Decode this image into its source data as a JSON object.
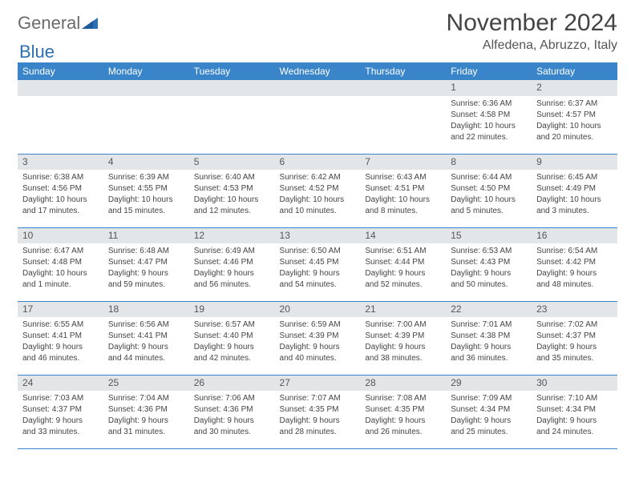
{
  "brand": {
    "part1": "General",
    "part2": "Blue"
  },
  "title": "November 2024",
  "location": "Alfedena, Abruzzo, Italy",
  "colors": {
    "header_bg": "#3a85c9",
    "header_text": "#ffffff",
    "daynum_bg": "#e3e6e9",
    "cell_border": "#3a85c9",
    "body_text": "#444444",
    "title_text": "#444444",
    "brand_gray": "#6b6b6b",
    "brand_blue": "#2c6fb3",
    "page_bg": "#ffffff"
  },
  "typography": {
    "title_fontsize": 30,
    "location_fontsize": 16,
    "dayheader_fontsize": 12,
    "daynum_fontsize": 12,
    "cell_fontsize": 10
  },
  "day_headers": [
    "Sunday",
    "Monday",
    "Tuesday",
    "Wednesday",
    "Thursday",
    "Friday",
    "Saturday"
  ],
  "weeks": [
    [
      null,
      null,
      null,
      null,
      null,
      {
        "n": "1",
        "sunrise": "Sunrise: 6:36 AM",
        "sunset": "Sunset: 4:58 PM",
        "dl1": "Daylight: 10 hours",
        "dl2": "and 22 minutes."
      },
      {
        "n": "2",
        "sunrise": "Sunrise: 6:37 AM",
        "sunset": "Sunset: 4:57 PM",
        "dl1": "Daylight: 10 hours",
        "dl2": "and 20 minutes."
      }
    ],
    [
      {
        "n": "3",
        "sunrise": "Sunrise: 6:38 AM",
        "sunset": "Sunset: 4:56 PM",
        "dl1": "Daylight: 10 hours",
        "dl2": "and 17 minutes."
      },
      {
        "n": "4",
        "sunrise": "Sunrise: 6:39 AM",
        "sunset": "Sunset: 4:55 PM",
        "dl1": "Daylight: 10 hours",
        "dl2": "and 15 minutes."
      },
      {
        "n": "5",
        "sunrise": "Sunrise: 6:40 AM",
        "sunset": "Sunset: 4:53 PM",
        "dl1": "Daylight: 10 hours",
        "dl2": "and 12 minutes."
      },
      {
        "n": "6",
        "sunrise": "Sunrise: 6:42 AM",
        "sunset": "Sunset: 4:52 PM",
        "dl1": "Daylight: 10 hours",
        "dl2": "and 10 minutes."
      },
      {
        "n": "7",
        "sunrise": "Sunrise: 6:43 AM",
        "sunset": "Sunset: 4:51 PM",
        "dl1": "Daylight: 10 hours",
        "dl2": "and 8 minutes."
      },
      {
        "n": "8",
        "sunrise": "Sunrise: 6:44 AM",
        "sunset": "Sunset: 4:50 PM",
        "dl1": "Daylight: 10 hours",
        "dl2": "and 5 minutes."
      },
      {
        "n": "9",
        "sunrise": "Sunrise: 6:45 AM",
        "sunset": "Sunset: 4:49 PM",
        "dl1": "Daylight: 10 hours",
        "dl2": "and 3 minutes."
      }
    ],
    [
      {
        "n": "10",
        "sunrise": "Sunrise: 6:47 AM",
        "sunset": "Sunset: 4:48 PM",
        "dl1": "Daylight: 10 hours",
        "dl2": "and 1 minute."
      },
      {
        "n": "11",
        "sunrise": "Sunrise: 6:48 AM",
        "sunset": "Sunset: 4:47 PM",
        "dl1": "Daylight: 9 hours",
        "dl2": "and 59 minutes."
      },
      {
        "n": "12",
        "sunrise": "Sunrise: 6:49 AM",
        "sunset": "Sunset: 4:46 PM",
        "dl1": "Daylight: 9 hours",
        "dl2": "and 56 minutes."
      },
      {
        "n": "13",
        "sunrise": "Sunrise: 6:50 AM",
        "sunset": "Sunset: 4:45 PM",
        "dl1": "Daylight: 9 hours",
        "dl2": "and 54 minutes."
      },
      {
        "n": "14",
        "sunrise": "Sunrise: 6:51 AM",
        "sunset": "Sunset: 4:44 PM",
        "dl1": "Daylight: 9 hours",
        "dl2": "and 52 minutes."
      },
      {
        "n": "15",
        "sunrise": "Sunrise: 6:53 AM",
        "sunset": "Sunset: 4:43 PM",
        "dl1": "Daylight: 9 hours",
        "dl2": "and 50 minutes."
      },
      {
        "n": "16",
        "sunrise": "Sunrise: 6:54 AM",
        "sunset": "Sunset: 4:42 PM",
        "dl1": "Daylight: 9 hours",
        "dl2": "and 48 minutes."
      }
    ],
    [
      {
        "n": "17",
        "sunrise": "Sunrise: 6:55 AM",
        "sunset": "Sunset: 4:41 PM",
        "dl1": "Daylight: 9 hours",
        "dl2": "and 46 minutes."
      },
      {
        "n": "18",
        "sunrise": "Sunrise: 6:56 AM",
        "sunset": "Sunset: 4:41 PM",
        "dl1": "Daylight: 9 hours",
        "dl2": "and 44 minutes."
      },
      {
        "n": "19",
        "sunrise": "Sunrise: 6:57 AM",
        "sunset": "Sunset: 4:40 PM",
        "dl1": "Daylight: 9 hours",
        "dl2": "and 42 minutes."
      },
      {
        "n": "20",
        "sunrise": "Sunrise: 6:59 AM",
        "sunset": "Sunset: 4:39 PM",
        "dl1": "Daylight: 9 hours",
        "dl2": "and 40 minutes."
      },
      {
        "n": "21",
        "sunrise": "Sunrise: 7:00 AM",
        "sunset": "Sunset: 4:39 PM",
        "dl1": "Daylight: 9 hours",
        "dl2": "and 38 minutes."
      },
      {
        "n": "22",
        "sunrise": "Sunrise: 7:01 AM",
        "sunset": "Sunset: 4:38 PM",
        "dl1": "Daylight: 9 hours",
        "dl2": "and 36 minutes."
      },
      {
        "n": "23",
        "sunrise": "Sunrise: 7:02 AM",
        "sunset": "Sunset: 4:37 PM",
        "dl1": "Daylight: 9 hours",
        "dl2": "and 35 minutes."
      }
    ],
    [
      {
        "n": "24",
        "sunrise": "Sunrise: 7:03 AM",
        "sunset": "Sunset: 4:37 PM",
        "dl1": "Daylight: 9 hours",
        "dl2": "and 33 minutes."
      },
      {
        "n": "25",
        "sunrise": "Sunrise: 7:04 AM",
        "sunset": "Sunset: 4:36 PM",
        "dl1": "Daylight: 9 hours",
        "dl2": "and 31 minutes."
      },
      {
        "n": "26",
        "sunrise": "Sunrise: 7:06 AM",
        "sunset": "Sunset: 4:36 PM",
        "dl1": "Daylight: 9 hours",
        "dl2": "and 30 minutes."
      },
      {
        "n": "27",
        "sunrise": "Sunrise: 7:07 AM",
        "sunset": "Sunset: 4:35 PM",
        "dl1": "Daylight: 9 hours",
        "dl2": "and 28 minutes."
      },
      {
        "n": "28",
        "sunrise": "Sunrise: 7:08 AM",
        "sunset": "Sunset: 4:35 PM",
        "dl1": "Daylight: 9 hours",
        "dl2": "and 26 minutes."
      },
      {
        "n": "29",
        "sunrise": "Sunrise: 7:09 AM",
        "sunset": "Sunset: 4:34 PM",
        "dl1": "Daylight: 9 hours",
        "dl2": "and 25 minutes."
      },
      {
        "n": "30",
        "sunrise": "Sunrise: 7:10 AM",
        "sunset": "Sunset: 4:34 PM",
        "dl1": "Daylight: 9 hours",
        "dl2": "and 24 minutes."
      }
    ]
  ]
}
